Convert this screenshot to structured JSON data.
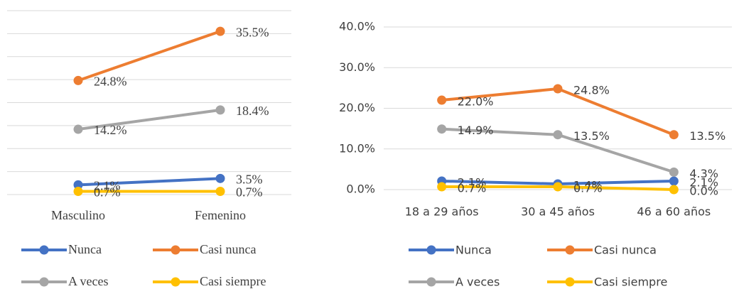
{
  "chart_data": [
    {
      "type": "line",
      "categories": [
        "Masculino",
        "Femenino"
      ],
      "ylim": [
        0,
        40
      ],
      "yticks": [
        0,
        5,
        10,
        15,
        20,
        25,
        30,
        35,
        40
      ],
      "show_tick_labels": false,
      "grid": true,
      "series": [
        {
          "name": "Nunca",
          "color": "#4472c4",
          "values": [
            2.1,
            3.5
          ],
          "value_labels": [
            "2.1%",
            "3.5%"
          ]
        },
        {
          "name": "Casi nunca",
          "color": "#ed7d31",
          "values": [
            24.8,
            35.5
          ],
          "value_labels": [
            "24.8%",
            "35.5%"
          ]
        },
        {
          "name": "A veces",
          "color": "#a5a5a5",
          "values": [
            14.2,
            18.4
          ],
          "value_labels": [
            "14.2%",
            "18.4%"
          ]
        },
        {
          "name": "Casi siempre",
          "color": "#ffc000",
          "values": [
            0.7,
            0.7
          ],
          "value_labels": [
            "0.7%",
            "0.7%"
          ]
        }
      ]
    },
    {
      "type": "line",
      "categories": [
        "18 a 29 años",
        "30 a 45 años",
        "46 a 60 años"
      ],
      "ylim": [
        0,
        40
      ],
      "yticks": [
        {
          "value": 0,
          "label": "0.0%"
        },
        {
          "value": 10,
          "label": "10.0%"
        },
        {
          "value": 20,
          "label": "20.0%"
        },
        {
          "value": 30,
          "label": "30.0%"
        },
        {
          "value": 40,
          "label": "40.0%"
        }
      ],
      "show_tick_labels": true,
      "grid": true,
      "series": [
        {
          "name": "Nunca",
          "color": "#4472c4",
          "values": [
            2.1,
            1.4,
            2.1
          ],
          "value_labels": [
            "2.1%",
            "1.4%",
            "2.1%"
          ]
        },
        {
          "name": "Casi nunca",
          "color": "#ed7d31",
          "values": [
            22.0,
            24.8,
            13.5
          ],
          "value_labels": [
            "22.0%",
            "24.8%",
            "13.5%"
          ]
        },
        {
          "name": "A veces",
          "color": "#a5a5a5",
          "values": [
            14.9,
            13.5,
            4.3
          ],
          "value_labels": [
            "14.9%",
            "13.5%",
            "4.3%"
          ]
        },
        {
          "name": "Casi siempre",
          "color": "#ffc000",
          "values": [
            0.7,
            0.7,
            0.0
          ],
          "value_labels": [
            "0.7%",
            "0.7%",
            "0.0%"
          ]
        }
      ]
    }
  ]
}
